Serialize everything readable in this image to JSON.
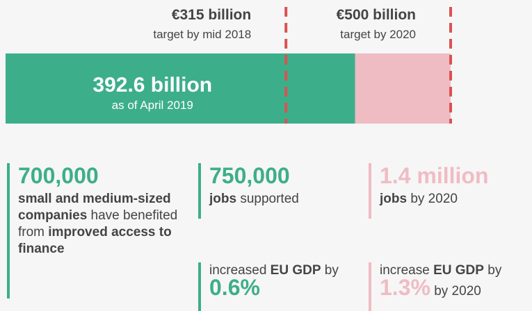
{
  "chart_data": {
    "type": "progress",
    "xlim": [
      0,
      500
    ],
    "value": 392.6,
    "value_label": "392.6 billion",
    "value_note": "as of April 2019",
    "color": "#3dae8a",
    "remaining_color": "#efbcc4",
    "target_color": "#d9534f",
    "targets": [
      {
        "value": 315,
        "label": "€315 billion",
        "note": "target by mid 2018"
      },
      {
        "value": 500,
        "label": "€500 billion",
        "note": "target by 2020"
      }
    ]
  },
  "stats": [
    {
      "headline": "700,000",
      "color": "#3dae8a",
      "text": [
        {
          "t": "small and medium-sized companies",
          "bold": true
        },
        {
          "t": " have benefited from "
        },
        {
          "t": "improved access to finance",
          "bold": true
        }
      ]
    },
    {
      "headline": "750,000",
      "color": "#3dae8a",
      "text": [
        {
          "t": "jobs",
          "bold": true
        },
        {
          "t": " supported"
        }
      ]
    },
    {
      "headline": "1.4 million",
      "color": "#efbcc4",
      "text": [
        {
          "t": "jobs",
          "bold": true
        },
        {
          "t": " by 2020"
        }
      ]
    },
    {
      "color": "#3dae8a",
      "text": [
        {
          "t": "increased "
        },
        {
          "t": "EU GDP",
          "bold": true
        },
        {
          "t": " by "
        },
        {
          "t": "0.6%",
          "big": true
        }
      ]
    },
    {
      "color": "#efbcc4",
      "text": [
        {
          "t": "increase "
        },
        {
          "t": "EU GDP",
          "bold": true
        },
        {
          "t": " by "
        },
        {
          "t": "1.3%",
          "big": true
        },
        {
          "t": " by 2020"
        }
      ]
    }
  ]
}
